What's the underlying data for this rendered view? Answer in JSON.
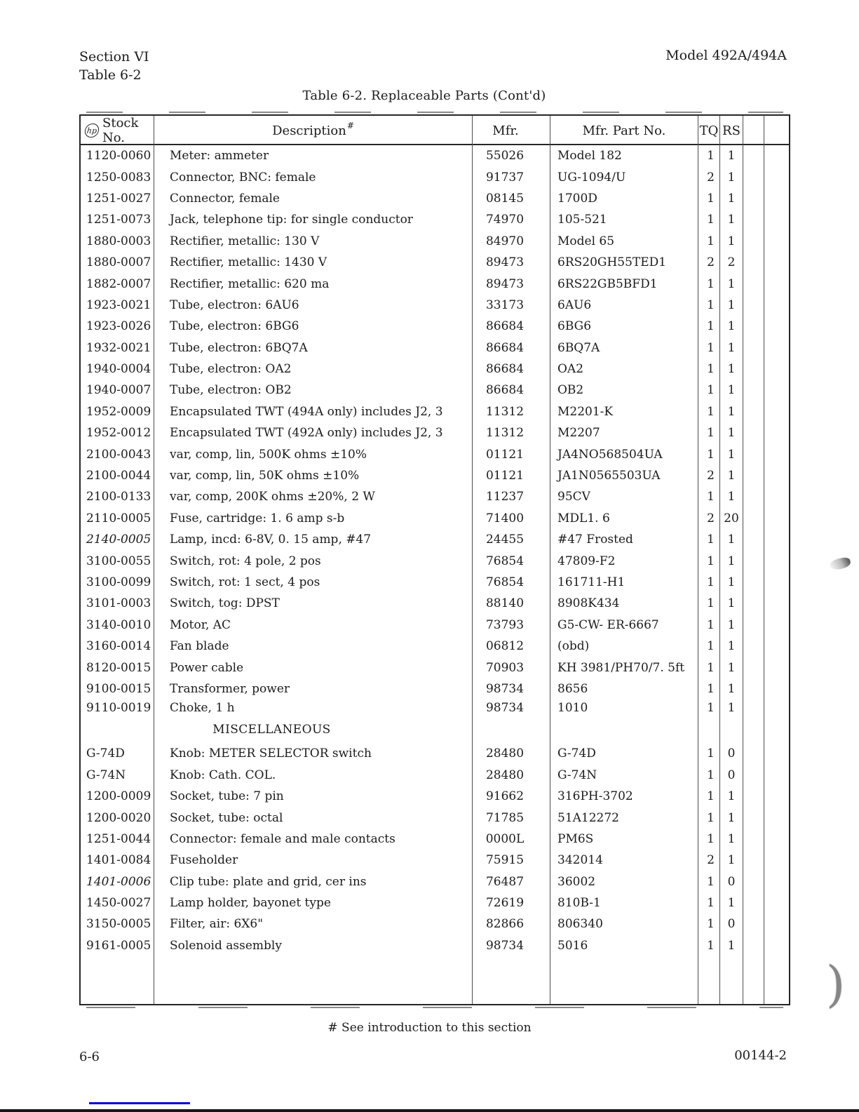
{
  "page": {
    "header_left_line1": "Section VI",
    "header_left_line2": "Table 6-2",
    "header_right": "Model 492A/494A",
    "table_title": "Table 6-2.  Replaceable Parts (Cont'd)",
    "footnote": "# See introduction to this section",
    "page_number": "6-6",
    "doc_number": "00144-2"
  },
  "table": {
    "headers": {
      "stock_no_logo": "hp",
      "stock_no": "Stock No.",
      "description": "Description",
      "description_footnote": "#",
      "mfr": "Mfr.",
      "mfr_part_no": "Mfr. Part No.",
      "tq": "TQ",
      "rs": "RS"
    },
    "rows": [
      {
        "stock": "1120-0060",
        "desc": "Meter:  ammeter",
        "mfr": "55026",
        "part": "Model 182",
        "tq": "1",
        "rs": "1"
      },
      {
        "stock": "1250-0083",
        "desc": "Connector, BNC:  female",
        "mfr": "91737",
        "part": "UG-1094/U",
        "tq": "2",
        "rs": "1"
      },
      {
        "stock": "1251-0027",
        "desc": "Connector, female",
        "mfr": "08145",
        "part": "1700D",
        "tq": "1",
        "rs": "1"
      },
      {
        "stock": "1251-0073",
        "desc": "Jack, telephone tip:  for single conductor",
        "mfr": "74970",
        "part": "105-521",
        "tq": "1",
        "rs": "1"
      },
      {
        "stock": "1880-0003",
        "desc": "Rectifier, metallic:  130 V",
        "mfr": "84970",
        "part": "Model 65",
        "tq": "1",
        "rs": "1"
      },
      {
        "stock": "1880-0007",
        "desc": "Rectifier, metallic:  1430 V",
        "mfr": "89473",
        "part": "6RS20GH55TED1",
        "tq": "2",
        "rs": "2"
      },
      {
        "stock": "1882-0007",
        "desc": "Rectifier, metallic:  620 ma",
        "mfr": "89473",
        "part": "6RS22GB5BFD1",
        "tq": "1",
        "rs": "1"
      },
      {
        "stock": "1923-0021",
        "desc": "Tube, electron:  6AU6",
        "mfr": "33173",
        "part": "6AU6",
        "tq": "1",
        "rs": "1"
      },
      {
        "stock": "1923-0026",
        "desc": "Tube, electron:  6BG6",
        "mfr": "86684",
        "part": "6BG6",
        "tq": "1",
        "rs": "1"
      },
      {
        "stock": "1932-0021",
        "desc": "Tube, electron:  6BQ7A",
        "mfr": "86684",
        "part": "6BQ7A",
        "tq": "1",
        "rs": "1"
      },
      {
        "stock": "1940-0004",
        "desc": "Tube, electron:  OA2",
        "mfr": "86684",
        "part": "OA2",
        "tq": "1",
        "rs": "1"
      },
      {
        "stock": "1940-0007",
        "desc": "Tube, electron:  OB2",
        "mfr": "86684",
        "part": "OB2",
        "tq": "1",
        "rs": "1"
      },
      {
        "stock": "1952-0009",
        "desc": "Encapsulated TWT (494A only) includes J2, 3",
        "mfr": "11312",
        "part": "M2201-K",
        "tq": "1",
        "rs": "1"
      },
      {
        "stock": "1952-0012",
        "desc": "Encapsulated TWT (492A only) includes J2, 3",
        "mfr": "11312",
        "part": "M2207",
        "tq": "1",
        "rs": "1"
      },
      {
        "stock": "2100-0043",
        "desc": "var, comp, lin, 500K ohms ±10%",
        "mfr": "01121",
        "part": "JA4NO568504UA",
        "tq": "1",
        "rs": "1"
      },
      {
        "stock": "2100-0044",
        "desc": "var, comp, lin, 50K ohms ±10%",
        "mfr": "01121",
        "part": "JA1N0565503UA",
        "tq": "2",
        "rs": "1"
      },
      {
        "stock": "2100-0133",
        "desc": "var, comp, 200K ohms ±20%, 2 W",
        "mfr": "11237",
        "part": "95CV",
        "tq": "1",
        "rs": "1"
      },
      {
        "stock": "2110-0005",
        "desc": "Fuse, cartridge:  1. 6 amp s-b",
        "mfr": "71400",
        "part": "MDL1. 6",
        "tq": "2",
        "rs": "20"
      },
      {
        "stock": "2140-0005",
        "italic": true,
        "desc": "Lamp, incd: 6-8V, 0. 15 amp,  #47",
        "mfr": "24455",
        "part": "#47 Frosted",
        "tq": "1",
        "rs": "1"
      },
      {
        "stock": "3100-0055",
        "desc": "Switch, rot:  4 pole, 2 pos",
        "mfr": "76854",
        "part": "47809-F2",
        "tq": "1",
        "rs": "1"
      },
      {
        "stock": "3100-0099",
        "desc": "Switch, rot:  1 sect, 4 pos",
        "mfr": "76854",
        "part": "161711-H1",
        "tq": "1",
        "rs": "1"
      },
      {
        "stock": "3101-0003",
        "desc": "Switch, tog:  DPST",
        "mfr": "88140",
        "part": "8908K434",
        "tq": "1",
        "rs": "1"
      },
      {
        "stock": "3140-0010",
        "desc": "Motor, AC",
        "mfr": "73793",
        "part": "G5-CW- ER-6667",
        "tq": "1",
        "rs": "1"
      },
      {
        "stock": "3160-0014",
        "desc": "Fan blade",
        "mfr": "06812",
        "part": "(obd)",
        "tq": "1",
        "rs": "1"
      },
      {
        "stock": "8120-0015",
        "desc": "Power cable",
        "mfr": "70903",
        "part": "KH 3981/PH70/7. 5ft",
        "tq": "1",
        "rs": "1"
      },
      {
        "stock": "9100-0015",
        "desc": "Transformer, power",
        "mfr": "98734",
        "part": "8656",
        "tq": "1",
        "rs": "1"
      },
      {
        "stock": "9110-0019",
        "tight": true,
        "desc": "Choke, 1 h",
        "mfr": "98734",
        "part": "1010",
        "tq": "1",
        "rs": "1"
      },
      {
        "section": "MISCELLANEOUS"
      },
      {
        "stock": "G-74D",
        "desc": "Knob:  METER SELECTOR switch",
        "mfr": "28480",
        "part": "G-74D",
        "tq": "1",
        "rs": "0"
      },
      {
        "stock": "G-74N",
        "desc": "Knob:  Cath. COL.",
        "mfr": "28480",
        "part": "G-74N",
        "tq": "1",
        "rs": "0"
      },
      {
        "stock": "1200-0009",
        "desc": "Socket, tube:  7 pin",
        "mfr": "91662",
        "part": "316PH-3702",
        "tq": "1",
        "rs": "1"
      },
      {
        "stock": "1200-0020",
        "desc": "Socket, tube:  octal",
        "mfr": "71785",
        "part": "51A12272",
        "tq": "1",
        "rs": "1"
      },
      {
        "stock": "1251-0044",
        "desc": "Connector:  female and male contacts",
        "mfr": "0000L",
        "part": "PM6S",
        "tq": "1",
        "rs": "1"
      },
      {
        "stock": "1401-0084",
        "desc": "Fuseholder",
        "mfr": "75915",
        "part": "342014",
        "tq": "2",
        "rs": "1"
      },
      {
        "stock": "1401-0006",
        "italic": true,
        "desc": "Clip tube:  plate and grid, cer ins",
        "mfr": "76487",
        "part": "36002",
        "tq": "1",
        "rs": "0"
      },
      {
        "stock": "1450-0027",
        "desc": "Lamp holder, bayonet type",
        "mfr": "72619",
        "part": "810B-1",
        "tq": "1",
        "rs": "1"
      },
      {
        "stock": "3150-0005",
        "desc": "Filter, air:  6X6\"",
        "mfr": "82866",
        "part": "806340",
        "tq": "1",
        "rs": "0"
      },
      {
        "stock": "9161-0005",
        "desc": "Solenoid assembly",
        "mfr": "98734",
        "part": "5016",
        "tq": "1",
        "rs": "1"
      }
    ]
  },
  "artifacts": {
    "paren_mark": ")"
  }
}
